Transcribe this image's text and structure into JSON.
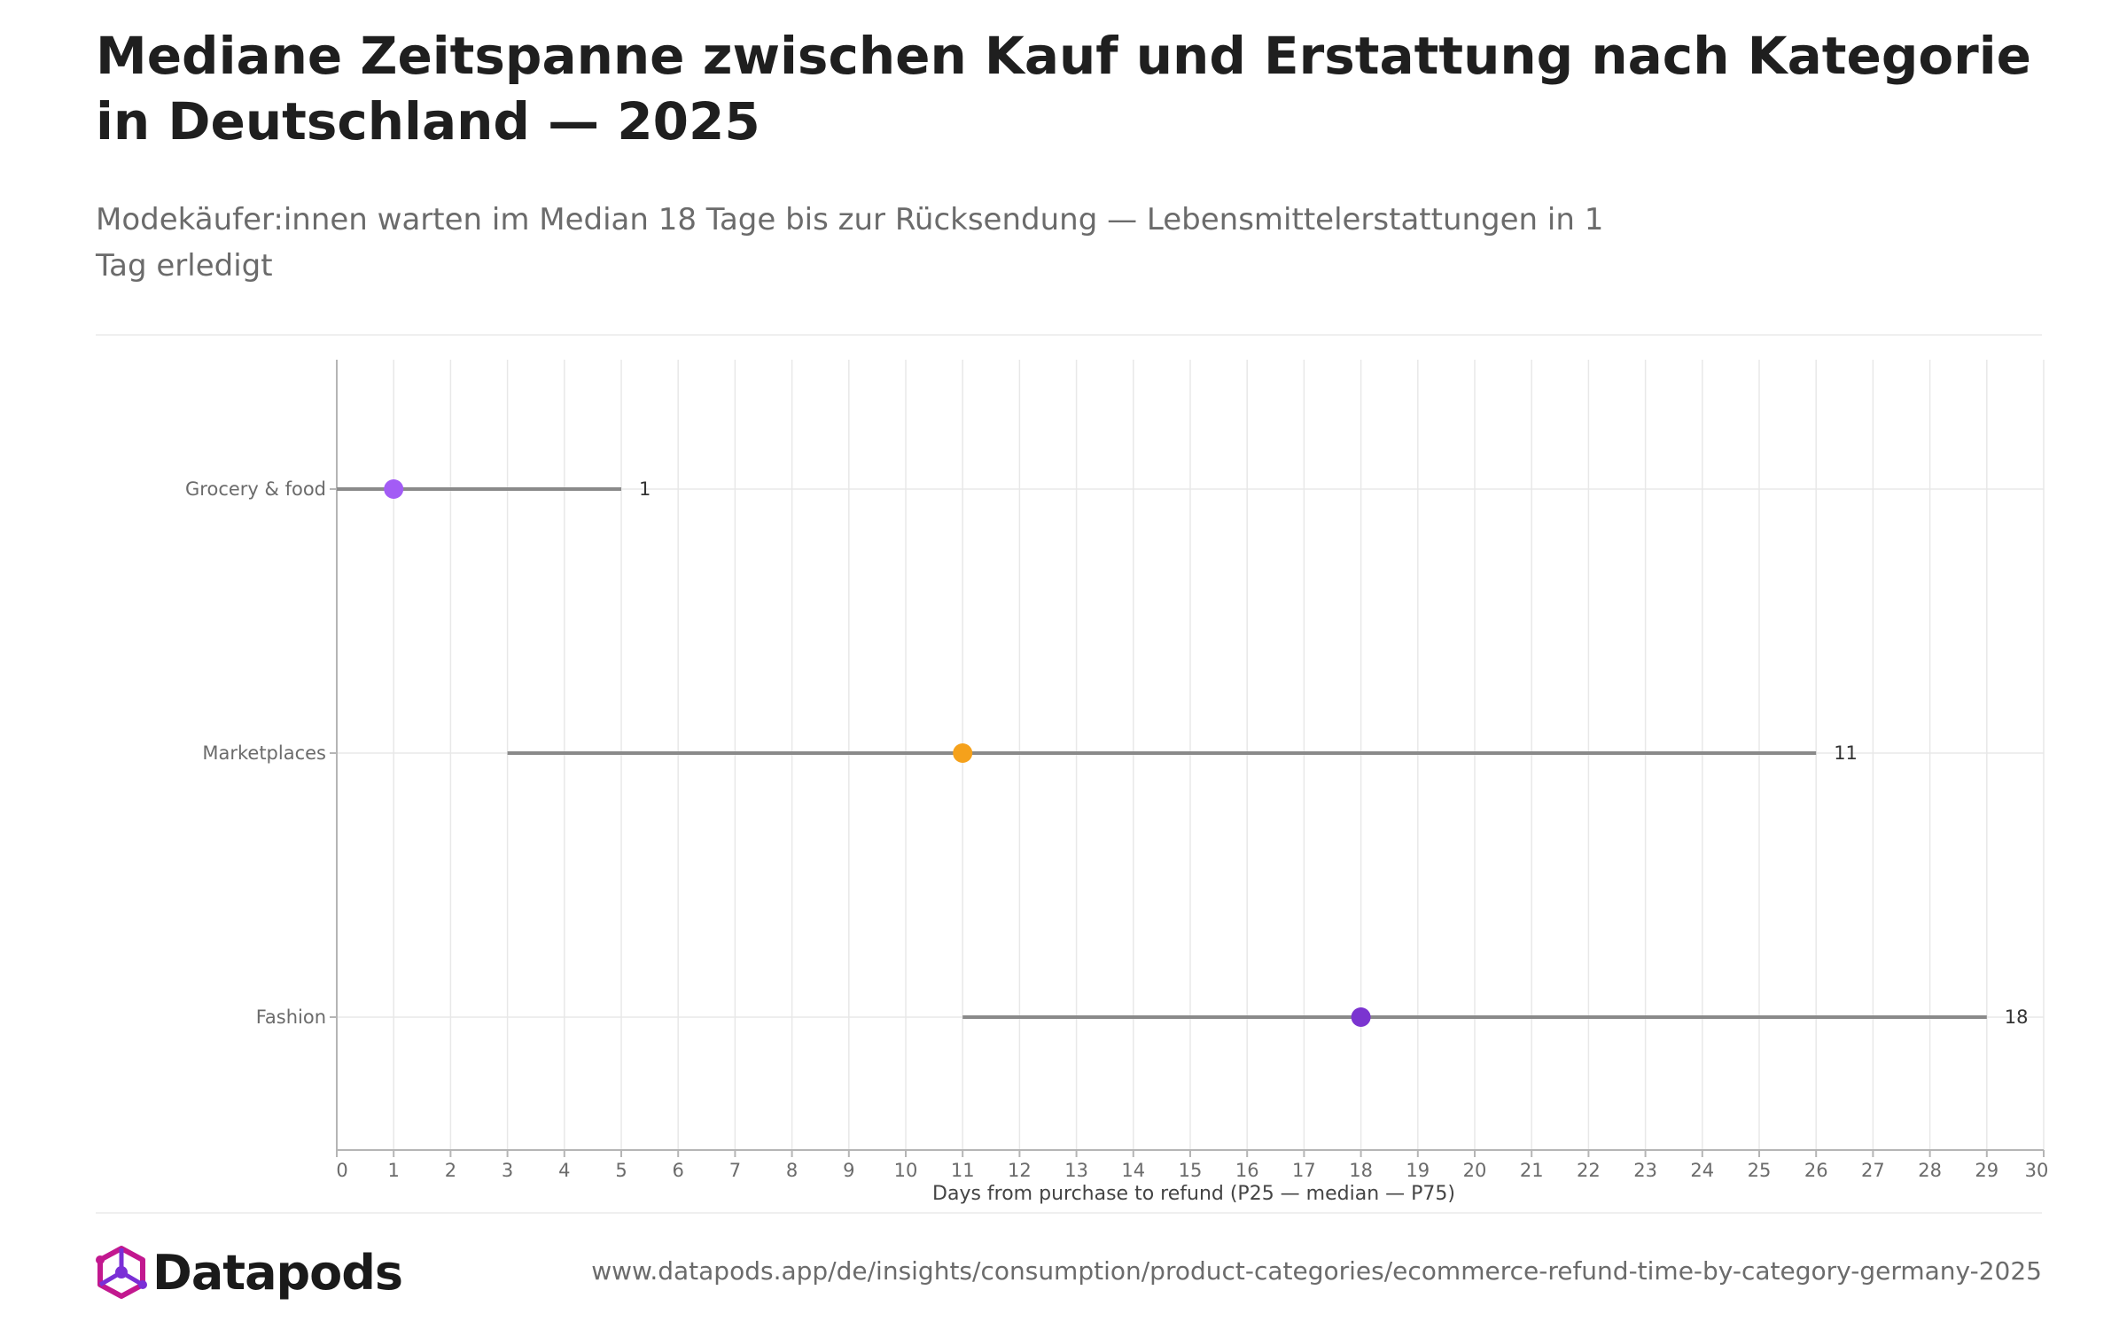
{
  "header": {
    "title": "Mediane Zeitspanne zwischen Kauf und Erstattung nach Kategorie in Deutschland — 2025",
    "subtitle": "Modekäufer:innen warten im Median 18 Tage bis zur Rücksendung — Lebensmittelerstattungen in 1 Tag erledigt"
  },
  "footer": {
    "brand": "Datapods",
    "source_url": "www.datapods.app/de/insights/consumption/product-categories/ecommerce-refund-time-by-category-germany-2025"
  },
  "colors": {
    "range_line": "#8a8a8a",
    "grid": "#e8e8e8",
    "axis": "#b5b5b5",
    "logo_magenta": "#c2188f",
    "logo_purple": "#7a2fd6"
  },
  "chart_data": {
    "type": "dumbbell",
    "xlabel": "Days from purchase to refund (P25 — median — P75)",
    "xlim": [
      0,
      30
    ],
    "xticks": [
      0,
      1,
      2,
      3,
      4,
      5,
      6,
      7,
      8,
      9,
      10,
      11,
      12,
      13,
      14,
      15,
      16,
      17,
      18,
      19,
      20,
      21,
      22,
      23,
      24,
      25,
      26,
      27,
      28,
      29,
      30
    ],
    "grid": true,
    "categories": [
      {
        "label": "Grocery & food",
        "p25": 0,
        "median": 1,
        "p75": 5,
        "median_label": "1",
        "color": "#a35cf5"
      },
      {
        "label": "Marketplaces",
        "p25": 3,
        "median": 11,
        "p75": 26,
        "median_label": "11",
        "color": "#f5a11b"
      },
      {
        "label": "Fashion",
        "p25": 11,
        "median": 18,
        "p75": 29,
        "median_label": "18",
        "color": "#7b34d0"
      }
    ]
  }
}
